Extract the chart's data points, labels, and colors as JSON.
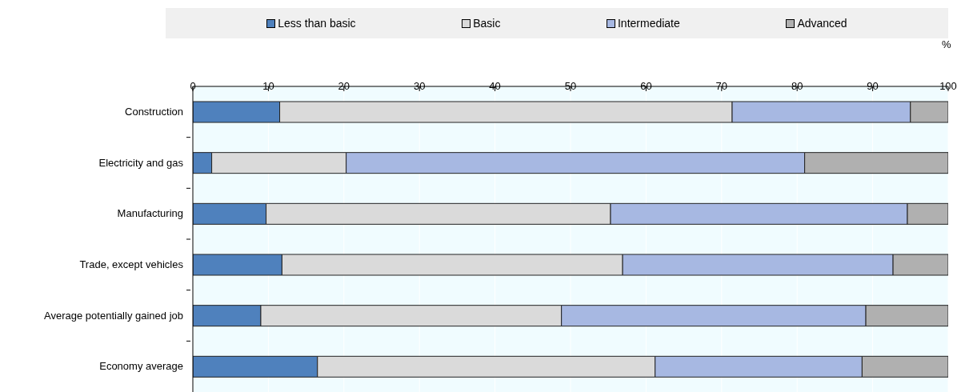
{
  "chart_data": {
    "type": "bar",
    "orientation": "horizontal",
    "stacked": true,
    "xlabel": "%",
    "categories": [
      "Construction",
      "Electricity and gas",
      "Manufacturing",
      "Trade, except vehicles",
      "Average potentially gained job",
      "Economy average"
    ],
    "series": [
      {
        "name": "Less than basic",
        "color": "#4f81bd",
        "values": [
          11.5,
          2.5,
          9.7,
          11.8,
          9.0,
          16.5
        ]
      },
      {
        "name": "Basic",
        "color": "#dadada",
        "values": [
          59.9,
          17.8,
          45.6,
          45.1,
          39.8,
          44.7
        ]
      },
      {
        "name": "Intermediate",
        "color": "#a7b8e2",
        "values": [
          23.6,
          60.7,
          39.3,
          35.8,
          40.3,
          27.4
        ]
      },
      {
        "name": "Advanced",
        "color": "#b0b0b0",
        "values": [
          5.0,
          19.0,
          5.4,
          7.3,
          10.9,
          11.4
        ]
      }
    ],
    "xlim": [
      0,
      100
    ],
    "xticks": [
      0,
      10,
      20,
      30,
      40,
      50,
      60,
      70,
      80,
      90,
      100
    ],
    "grid": "x",
    "legend": "top"
  }
}
